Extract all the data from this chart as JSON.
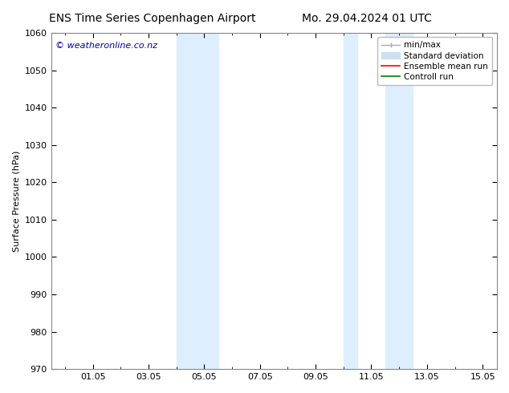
{
  "title_left": "ENS Time Series Copenhagen Airport",
  "title_right": "Mo. 29.04.2024 01 UTC",
  "ylabel": "Surface Pressure (hPa)",
  "xlabel": "",
  "ylim": [
    970,
    1060
  ],
  "yticks": [
    970,
    980,
    990,
    1000,
    1010,
    1020,
    1030,
    1040,
    1050,
    1060
  ],
  "xtick_labels": [
    "01.05",
    "03.05",
    "05.05",
    "07.05",
    "09.05",
    "11.05",
    "13.05",
    "15.05"
  ],
  "xtick_positions": [
    2,
    4,
    6,
    8,
    10,
    12,
    14,
    16
  ],
  "x_minor_positions": [
    1,
    2,
    3,
    4,
    5,
    6,
    7,
    8,
    9,
    10,
    11,
    12,
    13,
    14,
    15,
    16
  ],
  "xlim": [
    0.5,
    16.5
  ],
  "background_color": "#ffffff",
  "plot_bg_color": "#ffffff",
  "shaded_bands": [
    {
      "x_start": 5.0,
      "x_end": 5.5,
      "color": "#ddeeff"
    },
    {
      "x_start": 5.5,
      "x_end": 6.5,
      "color": "#ddeeff"
    },
    {
      "x_start": 11.0,
      "x_end": 11.5,
      "color": "#ddeeff"
    },
    {
      "x_start": 12.5,
      "x_end": 13.0,
      "color": "#ddeeff"
    },
    {
      "x_start": 13.0,
      "x_end": 13.5,
      "color": "#ddeeff"
    }
  ],
  "legend_entries": [
    {
      "label": "min/max",
      "color": "#aaaaaa",
      "lw": 1,
      "style": "line_with_bar"
    },
    {
      "label": "Standard deviation",
      "color": "#cce0f0",
      "lw": 8,
      "style": "thick"
    },
    {
      "label": "Ensemble mean run",
      "color": "#ff0000",
      "lw": 1.2,
      "style": "line"
    },
    {
      "label": "Controll run",
      "color": "#008000",
      "lw": 1.2,
      "style": "line"
    }
  ],
  "watermark": "© weatheronline.co.nz",
  "watermark_color": "#0000bb",
  "watermark_fontsize": 8,
  "title_fontsize": 10,
  "tick_label_fontsize": 8,
  "ylabel_fontsize": 8,
  "legend_fontsize": 7.5
}
